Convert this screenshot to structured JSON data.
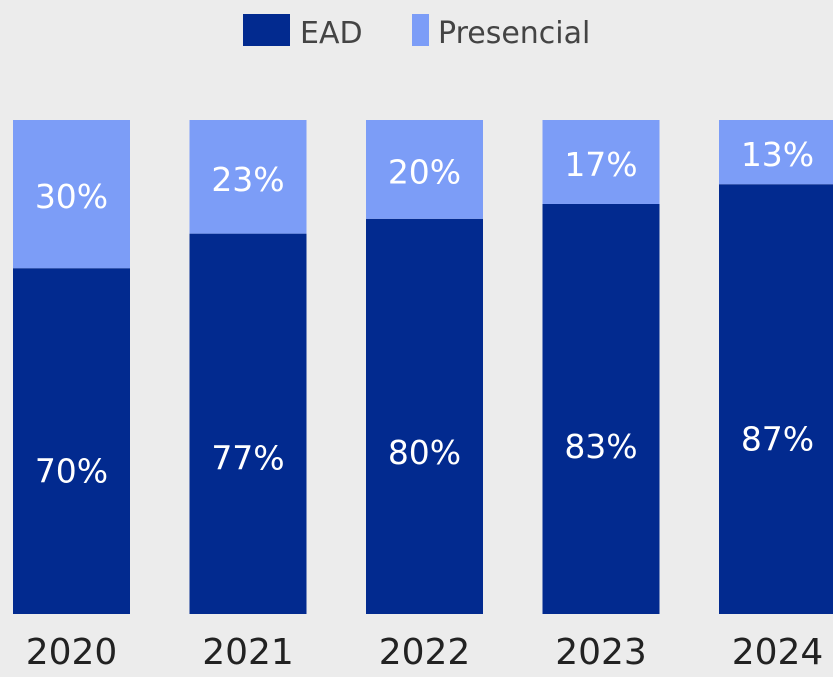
{
  "chart_data": {
    "type": "bar",
    "stacked": true,
    "categories": [
      "2020",
      "2021",
      "2022",
      "2023",
      "2024"
    ],
    "series": [
      {
        "name": "EAD",
        "values": [
          70,
          77,
          80,
          83,
          87
        ],
        "labels": [
          "70%",
          "77%",
          "80%",
          "83%",
          "87%"
        ],
        "color": "#022a8f"
      },
      {
        "name": "Presencial",
        "values": [
          30,
          23,
          20,
          17,
          13
        ],
        "labels": [
          "30%",
          "23%",
          "20%",
          "17%",
          "13%"
        ],
        "color": "#7c9df7"
      }
    ],
    "ylim": [
      0,
      100
    ],
    "legend": "top-center",
    "grid": false,
    "label_color": "#ffffff",
    "axis_text_color": "#222222",
    "background": "#ececec"
  }
}
